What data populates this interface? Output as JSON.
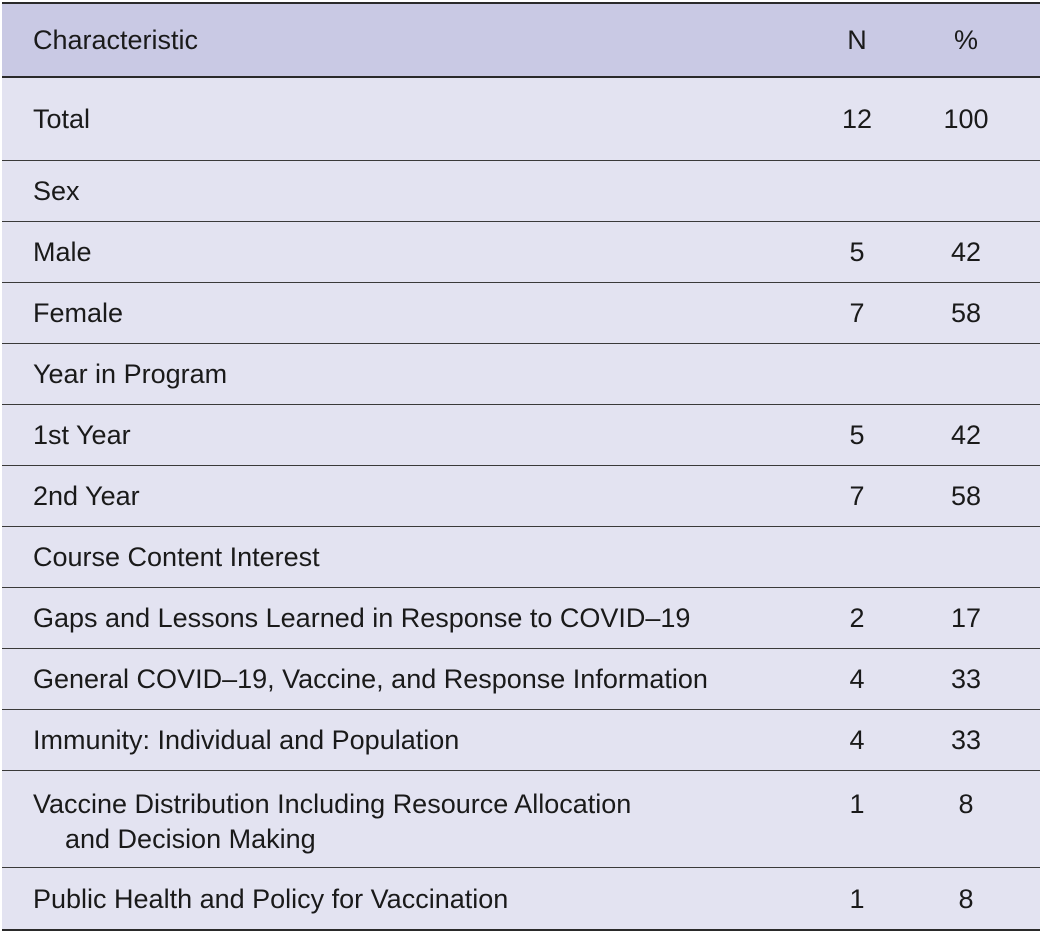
{
  "table": {
    "headers": {
      "characteristic": "Characteristic",
      "n": "N",
      "percent": "%"
    },
    "rows": [
      {
        "label": "Total",
        "n": "12",
        "pct": "100"
      },
      {
        "label": "Sex",
        "n": "",
        "pct": ""
      },
      {
        "label": "Male",
        "n": "5",
        "pct": "42"
      },
      {
        "label": "Female",
        "n": "7",
        "pct": "58"
      },
      {
        "label": "Year in Program",
        "n": "",
        "pct": ""
      },
      {
        "label": "1st Year",
        "n": "5",
        "pct": "42"
      },
      {
        "label": "2nd Year",
        "n": "7",
        "pct": "58"
      },
      {
        "label": "Course Content Interest",
        "n": "",
        "pct": ""
      },
      {
        "label": "Gaps and Lessons Learned in Response to COVID–19",
        "n": "2",
        "pct": "17"
      },
      {
        "label": "General COVID–19, Vaccine, and Response Information",
        "n": "4",
        "pct": "33"
      },
      {
        "label": "Immunity: Individual and Population",
        "n": "4",
        "pct": "33"
      },
      {
        "label": "Vaccine Distribution Including Resource Allocation",
        "label_cont": "and Decision Making",
        "n": "1",
        "pct": "8"
      },
      {
        "label": "Public Health and Policy for Vaccination",
        "n": "1",
        "pct": "8"
      }
    ]
  }
}
